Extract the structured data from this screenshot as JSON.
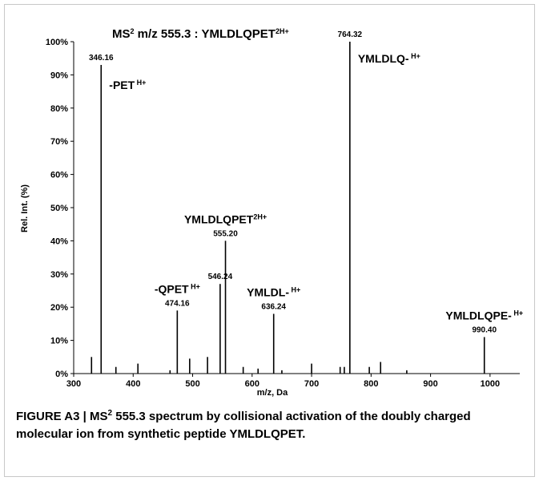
{
  "chart_data": {
    "type": "stick",
    "title": {
      "prefix": "MS",
      "sup1": "2",
      "main": " m/z 555.3 : YMLDLQPET",
      "sup2": "2H+"
    },
    "x_label": "m/z, Da",
    "y_label": "Rel. Int. (%)",
    "color": "#000000",
    "x": [
      330,
      346.16,
      371,
      408,
      462,
      474.16,
      495,
      525,
      546.24,
      555.2,
      585,
      610,
      636.24,
      650,
      700,
      748,
      755,
      764.32,
      797,
      816,
      860,
      990.4
    ],
    "values": [
      5,
      93,
      2,
      3,
      1,
      19,
      4.5,
      5,
      27,
      40,
      2,
      1.5,
      18,
      1,
      3,
      2,
      2,
      100,
      2,
      3.5,
      1,
      11
    ],
    "mz_labels": [
      null,
      "346.16",
      null,
      null,
      null,
      "474.16",
      null,
      null,
      "546.24",
      "555.20",
      null,
      null,
      "636.24",
      null,
      null,
      null,
      null,
      "764.32",
      null,
      null,
      null,
      "990.40"
    ],
    "ion_labels": [
      null,
      {
        "text": "-PET",
        "sup": " H+"
      },
      null,
      null,
      null,
      {
        "text": "-QPET",
        "sup": " H+"
      },
      null,
      null,
      null,
      {
        "text": "YMLDLQPET",
        "sup": "2H+"
      },
      null,
      null,
      {
        "text": "YMLDL-",
        "sup": " H+"
      },
      null,
      null,
      null,
      null,
      {
        "text": "YMLDLQ-",
        "sup": " H+"
      },
      null,
      null,
      null,
      {
        "text": "YMLDLQPE-",
        "sup": " H+"
      }
    ],
    "xlim": [
      300,
      1050
    ],
    "xticks": [
      300,
      400,
      500,
      600,
      700,
      800,
      900,
      1000
    ],
    "ylim": [
      0,
      100
    ],
    "yticks": [
      {
        "value": 0,
        "label": "0%"
      },
      {
        "value": 10,
        "label": "10%"
      },
      {
        "value": 20,
        "label": "20%"
      },
      {
        "value": 30,
        "label": "30%"
      },
      {
        "value": 40,
        "label": "40%"
      },
      {
        "value": 50,
        "label": "50%"
      },
      {
        "value": 60,
        "label": "60%"
      },
      {
        "value": 70,
        "label": "70%"
      },
      {
        "value": 80,
        "label": "80%"
      },
      {
        "value": 90,
        "label": "90%"
      },
      {
        "value": 100,
        "label": "100%"
      }
    ],
    "grid": false
  },
  "caption": {
    "prefix": "FIGURE A3 | MS",
    "sup": "2",
    "text": " 555.3 spectrum by collisional activation of the doubly charged molecular ion from synthetic peptide YMLDLQPET."
  }
}
